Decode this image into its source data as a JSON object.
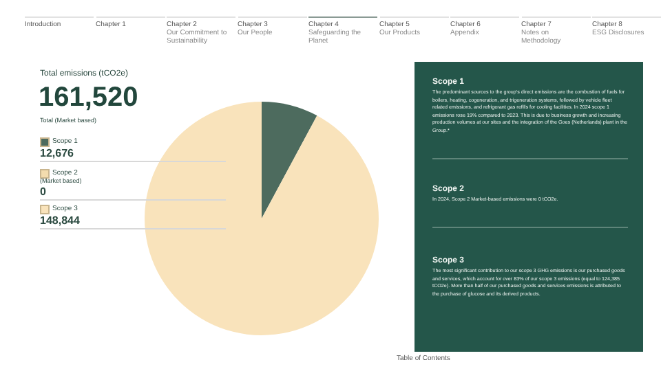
{
  "chart_data": {
    "type": "pie",
    "title": "Total emissions (tCO2e)",
    "categories": [
      "Scope 1",
      "Scope 2 (Market based)",
      "Scope 3"
    ],
    "values": [
      12676,
      0,
      148844
    ],
    "colors": [
      "#4d6b5e",
      "#f3dcae",
      "#f9e3bb"
    ],
    "value_labels": [
      "12,676",
      "0",
      "148,844"
    ],
    "annotations": [
      "161,520",
      "Total (Market based)",
      "Scope 1",
      "The predominant sources to the group's direct emissions are the combustion of fuels for boilers, heating, cogeneration, and trigeneration systems, followed by vehicle fleet related emissions, and refrigerant gas refills for cooling facilities. In 2024 scope 1 emissions rose 19% compared to 2023. This is due to business growth and increasing production volumes at our sites and the integration of the Goes (Netherlands) plant in the Group.*",
      "Scope 2",
      "In 2024, Scope 2 Market-based emissions were 0 tCO2e.",
      "Scope 3",
      "The most significant contribution to our scope 3 GHG emissions is our purchased goods and services, which account for over 83% of our scope 3 emissions (equal to 124,385 tCO2e). More than half of our purchased goods and services emissions is attributed to the purchase of glucose and its derived products.",
      "Table of Contents",
      "Introduction",
      "Chapter 1",
      "Chapter 2",
      "Our Commitment to Sustainability",
      "Chapter 3",
      "Our People",
      "Chapter 4",
      "Safeguarding the Planet",
      "Chapter 5",
      "Our Products",
      "Chapter 6",
      "Appendix",
      "Chapter 7",
      "Notes on Methodology",
      "Chapter 8",
      "ESG Disclosures"
    ],
    "legend": "left"
  }
}
